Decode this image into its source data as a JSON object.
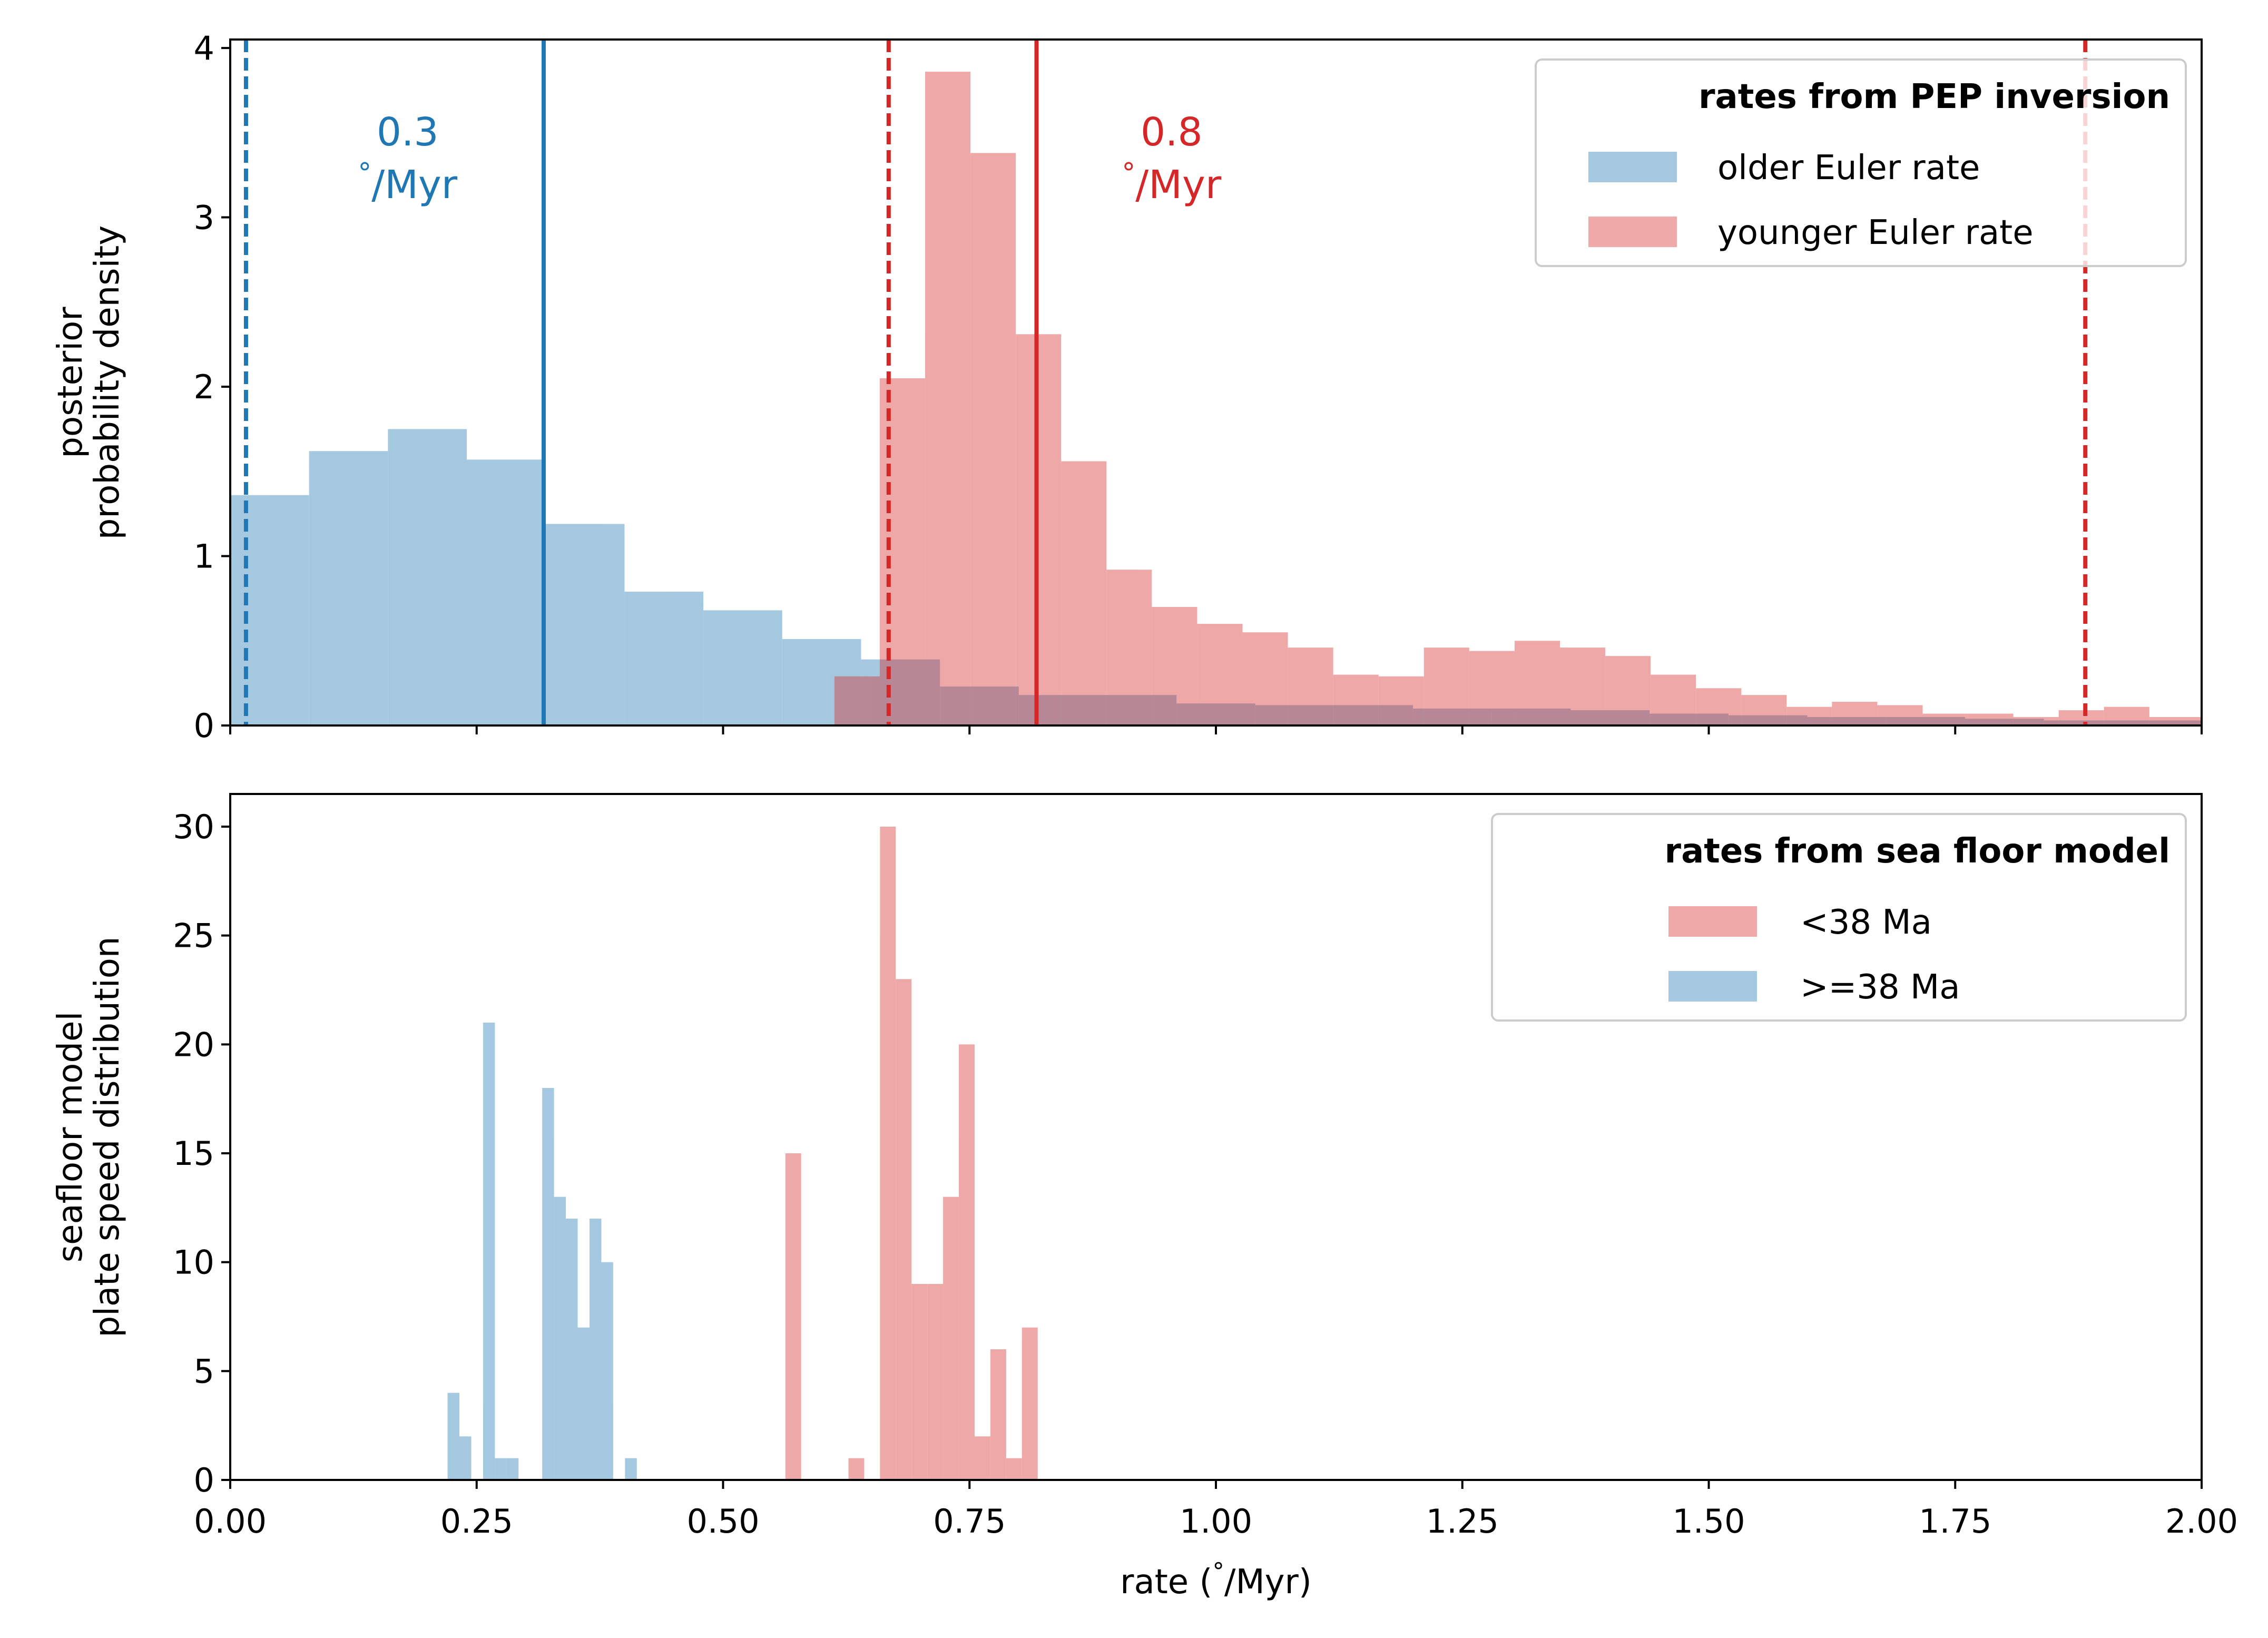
{
  "colors": {
    "blue": "#1f77b4",
    "red": "#d62728",
    "blue_fill": "#a6c8e1",
    "red_fill": "#eca8aa",
    "overlap_fill": "#b48a98"
  },
  "chart_data": [
    {
      "type": "bar",
      "panel": "top",
      "ylabel": [
        "posterior",
        "probability density"
      ],
      "xlim": [
        0,
        2
      ],
      "ylim": [
        0,
        4.05
      ],
      "yticks": [
        "0",
        "1",
        "2",
        "3",
        "4"
      ],
      "legend": {
        "title": "rates from PEP inversion",
        "placement": "top-right",
        "items": [
          {
            "label": "older Euler rate",
            "color_key": "blue_fill"
          },
          {
            "label": "younger Euler rate",
            "color_key": "red_fill"
          }
        ]
      },
      "series": [
        {
          "name": "older Euler rate",
          "color_key": "blue_fill",
          "bins": [
            {
              "x0": 0.0,
              "x1": 0.08,
              "h": 1.36
            },
            {
              "x0": 0.08,
              "x1": 0.16,
              "h": 1.62
            },
            {
              "x0": 0.16,
              "x1": 0.24,
              "h": 1.75
            },
            {
              "x0": 0.24,
              "x1": 0.32,
              "h": 1.57
            },
            {
              "x0": 0.32,
              "x1": 0.4,
              "h": 1.19
            },
            {
              "x0": 0.4,
              "x1": 0.48,
              "h": 0.79
            },
            {
              "x0": 0.48,
              "x1": 0.56,
              "h": 0.68
            },
            {
              "x0": 0.56,
              "x1": 0.64,
              "h": 0.51
            },
            {
              "x0": 0.64,
              "x1": 0.72,
              "h": 0.39
            },
            {
              "x0": 0.72,
              "x1": 0.8,
              "h": 0.23
            },
            {
              "x0": 0.8,
              "x1": 0.88,
              "h": 0.18
            },
            {
              "x0": 0.88,
              "x1": 0.96,
              "h": 0.18
            },
            {
              "x0": 0.96,
              "x1": 1.04,
              "h": 0.13
            },
            {
              "x0": 1.04,
              "x1": 1.12,
              "h": 0.12
            },
            {
              "x0": 1.12,
              "x1": 1.2,
              "h": 0.12
            },
            {
              "x0": 1.2,
              "x1": 1.28,
              "h": 0.1
            },
            {
              "x0": 1.28,
              "x1": 1.36,
              "h": 0.1
            },
            {
              "x0": 1.36,
              "x1": 1.44,
              "h": 0.09
            },
            {
              "x0": 1.44,
              "x1": 1.52,
              "h": 0.07
            },
            {
              "x0": 1.52,
              "x1": 1.6,
              "h": 0.06
            },
            {
              "x0": 1.6,
              "x1": 1.68,
              "h": 0.05
            },
            {
              "x0": 1.68,
              "x1": 1.76,
              "h": 0.05
            },
            {
              "x0": 1.76,
              "x1": 1.84,
              "h": 0.04
            },
            {
              "x0": 1.84,
              "x1": 1.92,
              "h": 0.03
            },
            {
              "x0": 1.92,
              "x1": 2.0,
              "h": 0.03
            }
          ]
        },
        {
          "name": "younger Euler rate",
          "color_key": "red_fill",
          "bins": [
            {
              "x0": 0.613,
              "x1": 0.659,
              "h": 0.29
            },
            {
              "x0": 0.659,
              "x1": 0.705,
              "h": 2.05
            },
            {
              "x0": 0.705,
              "x1": 0.751,
              "h": 3.86
            },
            {
              "x0": 0.751,
              "x1": 0.797,
              "h": 3.38
            },
            {
              "x0": 0.797,
              "x1": 0.843,
              "h": 2.31
            },
            {
              "x0": 0.843,
              "x1": 0.889,
              "h": 1.56
            },
            {
              "x0": 0.889,
              "x1": 0.935,
              "h": 0.92
            },
            {
              "x0": 0.935,
              "x1": 0.981,
              "h": 0.7
            },
            {
              "x0": 0.981,
              "x1": 1.027,
              "h": 0.6
            },
            {
              "x0": 1.027,
              "x1": 1.073,
              "h": 0.55
            },
            {
              "x0": 1.073,
              "x1": 1.119,
              "h": 0.46
            },
            {
              "x0": 1.119,
              "x1": 1.165,
              "h": 0.3
            },
            {
              "x0": 1.165,
              "x1": 1.211,
              "h": 0.29
            },
            {
              "x0": 1.211,
              "x1": 1.257,
              "h": 0.46
            },
            {
              "x0": 1.257,
              "x1": 1.303,
              "h": 0.44
            },
            {
              "x0": 1.303,
              "x1": 1.349,
              "h": 0.5
            },
            {
              "x0": 1.349,
              "x1": 1.395,
              "h": 0.46
            },
            {
              "x0": 1.395,
              "x1": 1.441,
              "h": 0.41
            },
            {
              "x0": 1.441,
              "x1": 1.487,
              "h": 0.3
            },
            {
              "x0": 1.487,
              "x1": 1.533,
              "h": 0.22
            },
            {
              "x0": 1.533,
              "x1": 1.579,
              "h": 0.18
            },
            {
              "x0": 1.579,
              "x1": 1.625,
              "h": 0.11
            },
            {
              "x0": 1.625,
              "x1": 1.671,
              "h": 0.14
            },
            {
              "x0": 1.671,
              "x1": 1.717,
              "h": 0.12
            },
            {
              "x0": 1.717,
              "x1": 1.763,
              "h": 0.07
            },
            {
              "x0": 1.763,
              "x1": 1.809,
              "h": 0.07
            },
            {
              "x0": 1.809,
              "x1": 1.855,
              "h": 0.05
            },
            {
              "x0": 1.855,
              "x1": 1.901,
              "h": 0.09
            },
            {
              "x0": 1.901,
              "x1": 1.947,
              "h": 0.11
            },
            {
              "x0": 1.947,
              "x1": 2.0,
              "h": 0.05
            }
          ]
        }
      ],
      "vlines": [
        {
          "x": 0.016,
          "color_key": "blue",
          "style": "dashed"
        },
        {
          "x": 0.318,
          "color_key": "blue",
          "style": "solid"
        },
        {
          "x": 0.668,
          "color_key": "red",
          "style": "dashed"
        },
        {
          "x": 0.818,
          "color_key": "red",
          "style": "solid"
        },
        {
          "x": 1.882,
          "color_key": "red",
          "style": "dashed"
        }
      ],
      "annotations": [
        {
          "x": 0.18,
          "y": 3.3,
          "color_key": "blue",
          "lines": [
            "0.3",
            "$^\\circ$/Myr"
          ]
        },
        {
          "x": 0.955,
          "y": 3.3,
          "color_key": "red",
          "lines": [
            "0.8",
            "$^\\circ$/Myr"
          ]
        }
      ]
    },
    {
      "type": "bar",
      "panel": "bottom",
      "xlabel": "rate ($^\\circ$/Myr)",
      "ylabel": [
        "seafloor model",
        "plate speed distribution"
      ],
      "xlim": [
        0,
        2
      ],
      "ylim": [
        0,
        31.5
      ],
      "xticks": [
        "0.00",
        "0.25",
        "0.50",
        "0.75",
        "1.00",
        "1.25",
        "1.50",
        "1.75",
        "2.00"
      ],
      "yticks": [
        "0",
        "5",
        "10",
        "15",
        "20",
        "25",
        "30"
      ],
      "legend": {
        "title": "rates from sea floor model",
        "placement": "top-right",
        "items": [
          {
            "label": "<38 Ma",
            "color_key": "red_fill"
          },
          {
            "label": ">=38 Ma",
            "color_key": "blue_fill"
          }
        ]
      },
      "series": [
        {
          "name": "<38 Ma",
          "color_key": "red_fill",
          "bins": [
            {
              "x0": 0.5632,
              "x1": 0.5792,
              "h": 15
            },
            {
              "x0": 0.6272,
              "x1": 0.6432,
              "h": 1
            },
            {
              "x0": 0.6592,
              "x1": 0.6752,
              "h": 30
            },
            {
              "x0": 0.6752,
              "x1": 0.6912,
              "h": 23
            },
            {
              "x0": 0.6912,
              "x1": 0.7072,
              "h": 9
            },
            {
              "x0": 0.7072,
              "x1": 0.7232,
              "h": 9
            },
            {
              "x0": 0.7232,
              "x1": 0.7392,
              "h": 13
            },
            {
              "x0": 0.7392,
              "x1": 0.7552,
              "h": 20
            },
            {
              "x0": 0.7552,
              "x1": 0.7712,
              "h": 2
            },
            {
              "x0": 0.7712,
              "x1": 0.7872,
              "h": 6
            },
            {
              "x0": 0.7872,
              "x1": 0.8032,
              "h": 1
            },
            {
              "x0": 0.8032,
              "x1": 0.8192,
              "h": 7
            }
          ]
        },
        {
          "name": ">=38 Ma",
          "color_key": "blue_fill",
          "bins": [
            {
              "x0": 0.2205,
              "x1": 0.2325,
              "h": 4
            },
            {
              "x0": 0.2325,
              "x1": 0.2445,
              "h": 2
            },
            {
              "x0": 0.2565,
              "x1": 0.2685,
              "h": 21
            },
            {
              "x0": 0.2685,
              "x1": 0.2805,
              "h": 1
            },
            {
              "x0": 0.2805,
              "x1": 0.2925,
              "h": 1
            },
            {
              "x0": 0.3165,
              "x1": 0.3285,
              "h": 18
            },
            {
              "x0": 0.3285,
              "x1": 0.3405,
              "h": 13
            },
            {
              "x0": 0.3405,
              "x1": 0.3525,
              "h": 12
            },
            {
              "x0": 0.3525,
              "x1": 0.3645,
              "h": 7
            },
            {
              "x0": 0.3645,
              "x1": 0.3765,
              "h": 12
            },
            {
              "x0": 0.3765,
              "x1": 0.3885,
              "h": 10
            },
            {
              "x0": 0.4005,
              "x1": 0.4125,
              "h": 1
            }
          ]
        }
      ]
    }
  ]
}
